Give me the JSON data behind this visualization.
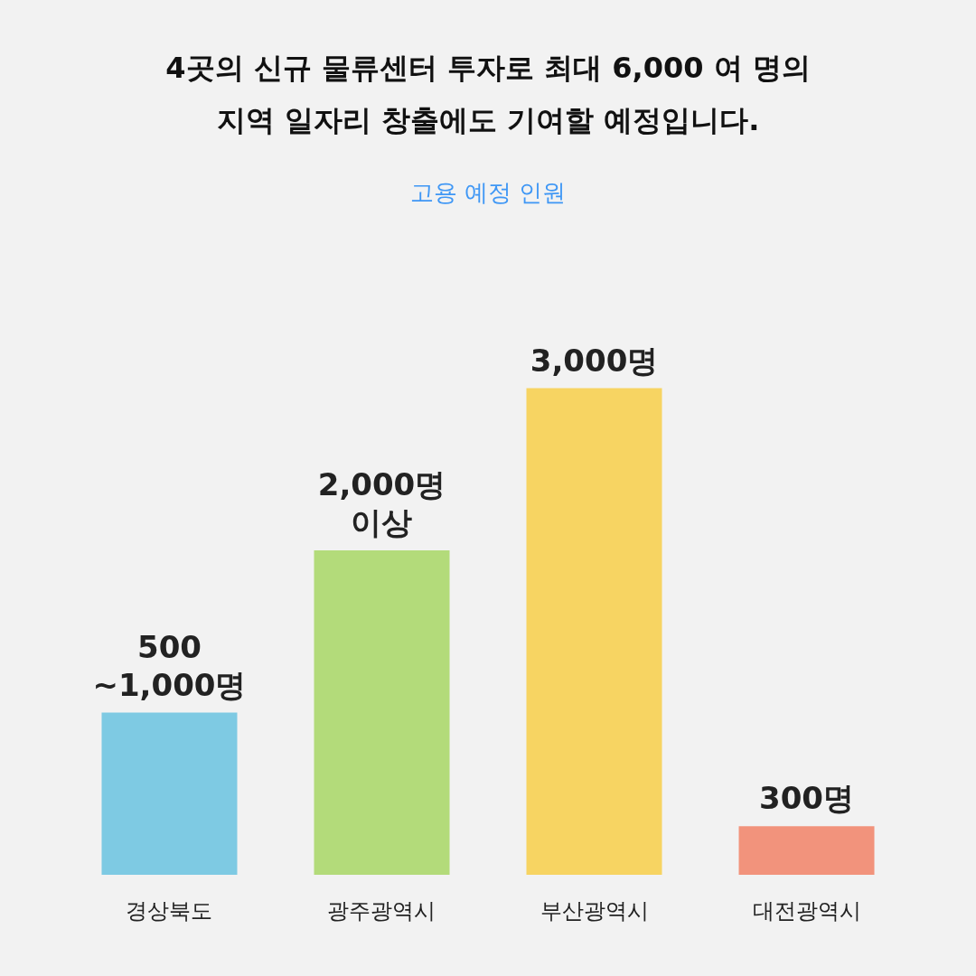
{
  "chart_data": {
    "type": "bar",
    "title": [
      "4곳의 신규 물류센터 투자로 최대 6,000 여 명의",
      "지역 일자리 창출에도 기여할 예정입니다."
    ],
    "subtitle": "고용 예정 인원",
    "categories": [
      "경상북도",
      "광주광역시",
      "부산광역시",
      "대전광역시"
    ],
    "values": [
      1000,
      2000,
      3000,
      300
    ],
    "colors": [
      "#7ecae3",
      "#b3db7a",
      "#f7d462",
      "#f2937c"
    ],
    "value_labels": [
      "500\n~1,000명",
      "2,000명\n이상",
      "3,000명",
      "300명"
    ],
    "grid": false
  }
}
